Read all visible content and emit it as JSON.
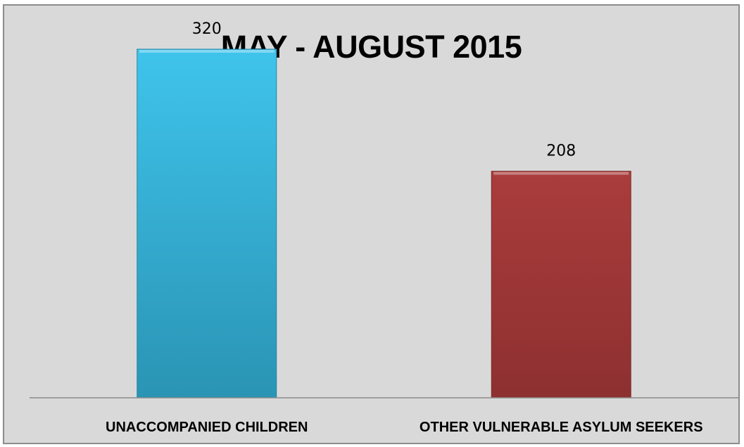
{
  "chart_data": {
    "type": "bar",
    "title": "MAY - AUGUST 2015",
    "categories": [
      "UNACCOMPANIED CHILDREN",
      "OTHER VULNERABLE ASYLUM SEEKERS"
    ],
    "values": [
      320,
      208
    ],
    "data_labels": [
      "320",
      "208"
    ],
    "colors": [
      "#3bbfe6",
      "#a63b3b"
    ],
    "ylim": [
      0,
      360
    ],
    "grid": false,
    "legend": "none",
    "xlabel": "",
    "ylabel": ""
  }
}
